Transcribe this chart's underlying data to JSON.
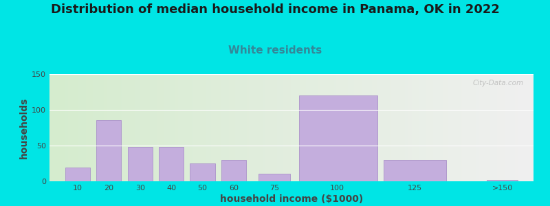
{
  "title": "Distribution of median household income in Panama, OK in 2022",
  "subtitle": "White residents",
  "xlabel": "household income ($1000)",
  "ylabel": "households",
  "title_fontsize": 13,
  "subtitle_fontsize": 11,
  "subtitle_color": "#338899",
  "bar_color": "#c4aedd",
  "bar_edge_color": "#b09acc",
  "background_outer": "#00e5e5",
  "background_inner_left": "#d5ecce",
  "background_inner_right": "#f0f0f0",
  "ylim": [
    0,
    150
  ],
  "yticks": [
    0,
    50,
    100,
    150
  ],
  "tick_labels": [
    "10",
    "20",
    "30",
    "40",
    "50",
    "60",
    "75",
    "100",
    "125",
    ">150"
  ],
  "values": [
    19,
    86,
    48,
    48,
    25,
    30,
    11,
    120,
    30,
    2
  ],
  "bar_lefts": [
    5,
    15,
    25,
    35,
    45,
    55,
    67,
    80,
    107,
    140
  ],
  "bar_widths": [
    8,
    8,
    8,
    8,
    8,
    8,
    10,
    25,
    20,
    10
  ],
  "bar_xtick_pos": [
    9,
    19,
    29,
    39,
    49,
    59,
    72,
    92,
    117,
    145
  ],
  "watermark": "City-Data.com"
}
